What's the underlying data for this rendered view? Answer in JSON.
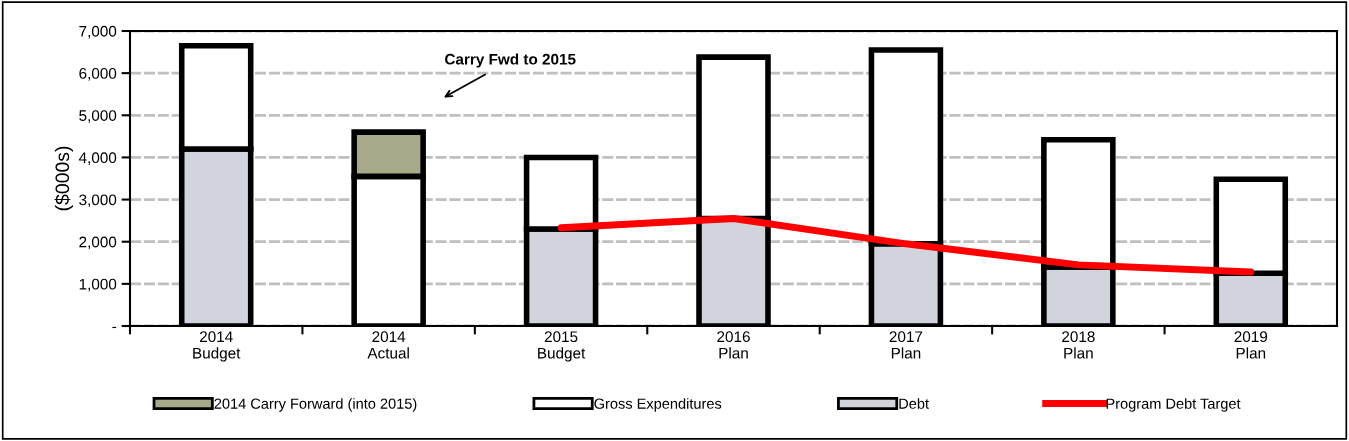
{
  "chart_data": {
    "type": "bar",
    "stacked": true,
    "ylabel": "($000s)",
    "categories": [
      "2014\nBudget",
      "2014\nActual",
      "2015\nBudget",
      "2016\nPlan",
      "2017\nPlan",
      "2018\nPlan",
      "2019\nPlan"
    ],
    "series": [
      {
        "name": "Debt",
        "color": "#d1d4dc",
        "values": [
          4200,
          0,
          2300,
          2550,
          1950,
          1400,
          1250
        ]
      },
      {
        "name": "Gross Expenditures",
        "color": "#ffffff",
        "values": [
          2450,
          3550,
          1700,
          3830,
          4600,
          3020,
          2230
        ]
      },
      {
        "name": "2014 Carry Forward (into 2015)",
        "color": "#a8a88a",
        "values": [
          0,
          1050,
          0,
          0,
          0,
          0,
          0
        ]
      },
      {
        "name": "Program Debt Target",
        "type": "line",
        "color": "#ff0000",
        "values": [
          null,
          null,
          2330,
          2550,
          1950,
          1450,
          1280
        ]
      }
    ],
    "ylim": [
      0,
      7000
    ],
    "yticks": [
      {
        "value": 0,
        "label": "-"
      },
      {
        "value": 1000,
        "label": "1,000"
      },
      {
        "value": 2000,
        "label": "2,000"
      },
      {
        "value": 3000,
        "label": "3,000"
      },
      {
        "value": 4000,
        "label": "4,000"
      },
      {
        "value": 5000,
        "label": "5,000"
      },
      {
        "value": 6000,
        "label": "6,000"
      },
      {
        "value": 7000,
        "label": "7,000"
      }
    ],
    "grid": "y",
    "legend": "bottom",
    "annotations": [
      "Carry Fwd to 2015"
    ]
  }
}
